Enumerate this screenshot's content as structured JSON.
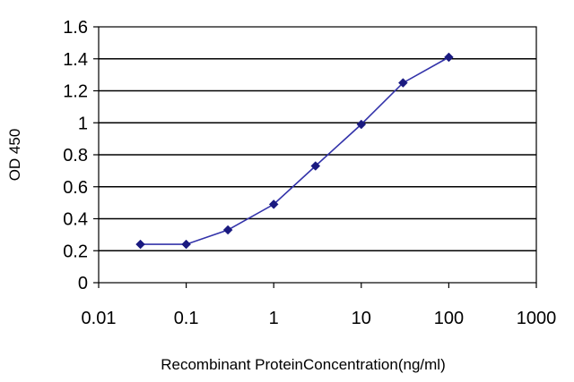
{
  "chart_data": {
    "type": "line",
    "title": "",
    "xlabel": "Recombinant ProteinConcentration(ng/ml)",
    "ylabel": "OD 450",
    "x_scale": "log",
    "xlim": [
      0.01,
      1000
    ],
    "ylim": [
      0,
      1.6
    ],
    "x_ticks": [
      0.01,
      0.1,
      1,
      10,
      100,
      1000
    ],
    "x_tick_labels": [
      "0.01",
      "0.1",
      "1",
      "10",
      "100",
      "1000"
    ],
    "y_ticks": [
      0,
      0.2,
      0.4,
      0.6,
      0.8,
      1,
      1.2,
      1.4,
      1.6
    ],
    "y_tick_labels": [
      "0",
      "0.2",
      "0.4",
      "0.6",
      "0.8",
      "1",
      "1.2",
      "1.4",
      "1.6"
    ],
    "grid": "horizontal",
    "legend": "none",
    "series": [
      {
        "x": [
          0.03,
          0.1,
          0.3,
          1,
          3,
          10,
          30,
          100
        ],
        "y": [
          0.24,
          0.24,
          0.33,
          0.49,
          0.73,
          0.99,
          1.25,
          1.41
        ],
        "color": "#3333aa",
        "marker_color": "#1a1a80"
      }
    ]
  }
}
